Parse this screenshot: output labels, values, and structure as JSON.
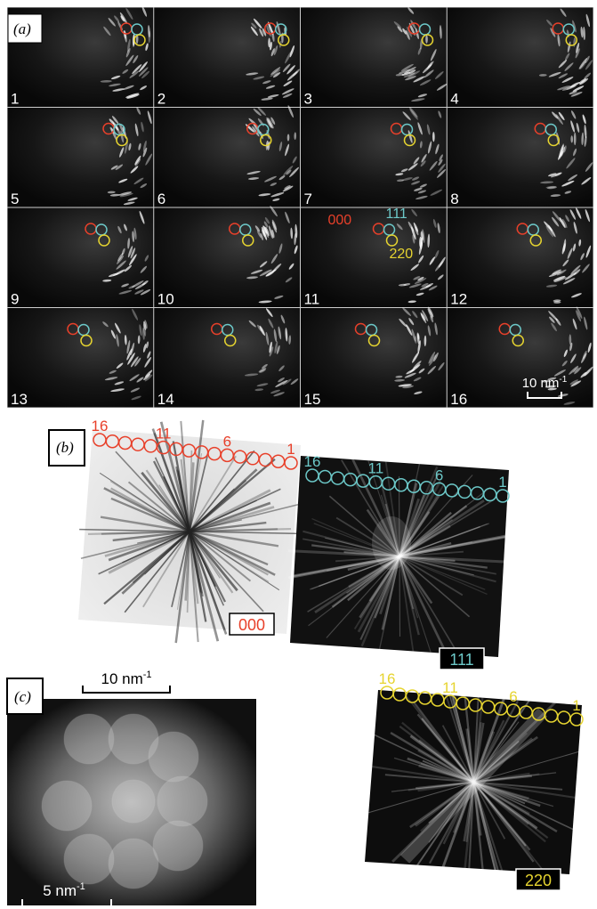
{
  "panel_a": {
    "label": "(a)",
    "frames": [
      "1",
      "2",
      "3",
      "4",
      "5",
      "6",
      "7",
      "8",
      "9",
      "10",
      "11",
      "12",
      "13",
      "14",
      "15",
      "16"
    ],
    "spot_labels": [
      "000",
      "111",
      "220"
    ],
    "scale_bar": {
      "value": "10 nm",
      "exponent": "-1"
    }
  },
  "panel_b": {
    "label": "(b)",
    "images": [
      {
        "reflection": "000",
        "ticks": [
          "16",
          "11",
          "6",
          "1"
        ]
      },
      {
        "reflection": "111",
        "ticks": [
          "16",
          "11",
          "6",
          "1"
        ]
      }
    ],
    "scale_bar": {
      "value": "10 nm",
      "exponent": "-1"
    }
  },
  "panel_b2": {
    "images": [
      {
        "reflection": "220",
        "ticks": [
          "16",
          "11",
          "6",
          "1"
        ]
      }
    ]
  },
  "panel_c": {
    "label": "(c)",
    "scale_bar": {
      "value": "5 nm",
      "exponent": "-1"
    }
  }
}
